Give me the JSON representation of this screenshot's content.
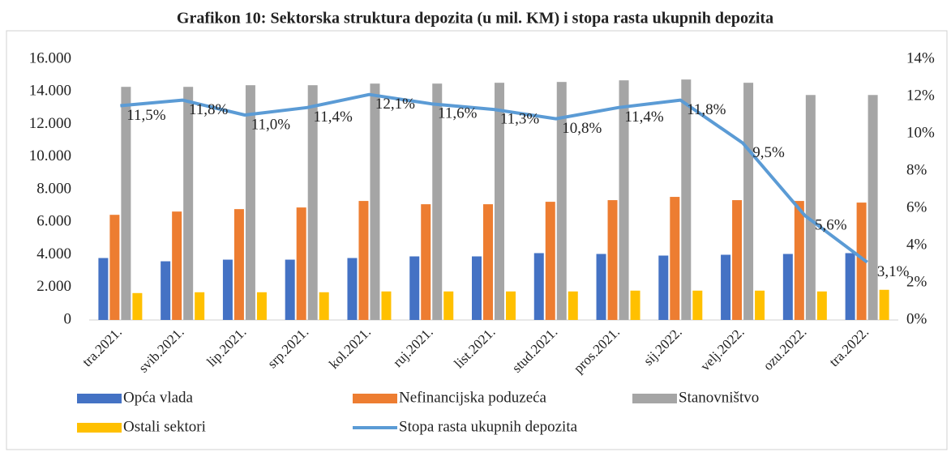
{
  "chart_data": {
    "type": "bar",
    "title": "Grafikon 10: Sektorska struktura depozita (u mil. KM) i stopa rasta ukupnih depozita",
    "categories": [
      "tra.2021.",
      "svib.2021.",
      "lip.2021.",
      "srp.2021.",
      "kol.2021.",
      "ruj.2021.",
      "list.2021.",
      "stud.2021.",
      "pros.2021.",
      "sij.2022.",
      "velj.2022.",
      "ozu.2022.",
      "tra.2022."
    ],
    "series": [
      {
        "name": "Opća vlada",
        "color": "#4472c4",
        "values": [
          3800,
          3600,
          3700,
          3700,
          3800,
          3900,
          3900,
          4100,
          4050,
          3950,
          4000,
          4050,
          4100
        ]
      },
      {
        "name": "Nefinancijska poduzeća",
        "color": "#ed7d31",
        "values": [
          6450,
          6650,
          6800,
          6900,
          7300,
          7100,
          7100,
          7250,
          7350,
          7550,
          7350,
          7300,
          7200
        ]
      },
      {
        "name": "Stanovništvo",
        "color": "#a5a5a5",
        "values": [
          14300,
          14300,
          14400,
          14400,
          14500,
          14500,
          14550,
          14600,
          14700,
          14750,
          14550,
          13800,
          13800
        ]
      },
      {
        "name": "Ostali sektori",
        "color": "#ffc000",
        "values": [
          1650,
          1700,
          1700,
          1700,
          1750,
          1750,
          1750,
          1750,
          1800,
          1800,
          1800,
          1750,
          1850
        ]
      },
      {
        "name": "Stopa rasta ukupnih depozita",
        "color": "#5b9bd5",
        "type": "line",
        "axis": "y2",
        "values": [
          11.5,
          11.8,
          11.0,
          11.4,
          12.1,
          11.6,
          11.3,
          10.8,
          11.4,
          11.8,
          9.5,
          5.6,
          3.1
        ],
        "value_labels": [
          "11,5%",
          "11,8%",
          "11,0%",
          "11,4%",
          "12,1%",
          "11,6%",
          "11,3%",
          "10,8%",
          "11,4%",
          "11,8%",
          "9,5%",
          "5,6%",
          "3,1%"
        ]
      }
    ],
    "ylim": [
      0,
      16000
    ],
    "yticks": [
      {
        "value": 0,
        "label": "0"
      },
      {
        "value": 2000,
        "label": "2.000"
      },
      {
        "value": 4000,
        "label": "4.000"
      },
      {
        "value": 6000,
        "label": "6.000"
      },
      {
        "value": 8000,
        "label": "8.000"
      },
      {
        "value": 10000,
        "label": "10.000"
      },
      {
        "value": 12000,
        "label": "12.000"
      },
      {
        "value": 14000,
        "label": "14.000"
      },
      {
        "value": 16000,
        "label": "16.000"
      }
    ],
    "y2lim": [
      0,
      14
    ],
    "y2ticks": [
      {
        "value": 0,
        "label": "0%"
      },
      {
        "value": 2,
        "label": "2%"
      },
      {
        "value": 4,
        "label": "4%"
      },
      {
        "value": 6,
        "label": "6%"
      },
      {
        "value": 8,
        "label": "8%"
      },
      {
        "value": 10,
        "label": "10%"
      },
      {
        "value": 12,
        "label": "12%"
      },
      {
        "value": 14,
        "label": "14%"
      }
    ],
    "legend": "bottom"
  }
}
